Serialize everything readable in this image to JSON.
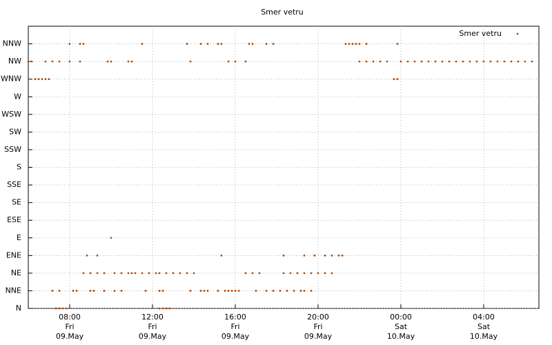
{
  "chart_data": {
    "type": "scatter",
    "title": "Smer vetru",
    "xlim": [
      "09.May 06:00",
      "10.May 06:40"
    ],
    "xticks": [
      {
        "value": "09.May 08:00",
        "label": [
          "08:00",
          "Fri",
          "09.May"
        ]
      },
      {
        "value": "09.May 12:00",
        "label": [
          "12:00",
          "Fri",
          "09.May"
        ]
      },
      {
        "value": "09.May 16:00",
        "label": [
          "16:00",
          "Fri",
          "09.May"
        ]
      },
      {
        "value": "09.May 20:00",
        "label": [
          "20:00",
          "Fri",
          "09.May"
        ]
      },
      {
        "value": "10.May 00:00",
        "label": [
          "00:00",
          "Sat",
          "10.May"
        ]
      },
      {
        "value": "10.May 04:00",
        "label": [
          "04:00",
          "Sat",
          "10.May"
        ]
      }
    ],
    "ylim": [
      0,
      16
    ],
    "yticks": [
      {
        "value": 0,
        "label": "N"
      },
      {
        "value": 1,
        "label": "NNE"
      },
      {
        "value": 2,
        "label": "NE"
      },
      {
        "value": 3,
        "label": "ENE"
      },
      {
        "value": 4,
        "label": "E"
      },
      {
        "value": 5,
        "label": "ESE"
      },
      {
        "value": 6,
        "label": "SE"
      },
      {
        "value": 7,
        "label": "SSE"
      },
      {
        "value": 8,
        "label": "S"
      },
      {
        "value": 9,
        "label": "SSW"
      },
      {
        "value": 10,
        "label": "SW"
      },
      {
        "value": 11,
        "label": "WSW"
      },
      {
        "value": 12,
        "label": "W"
      },
      {
        "value": 13,
        "label": "WNW"
      },
      {
        "value": 14,
        "label": "NW"
      },
      {
        "value": 15,
        "label": "NNW"
      }
    ],
    "grid": true,
    "legend": "top-right",
    "series": [
      {
        "name": "Smer vetru",
        "color": "#b04a00",
        "x": [
          "09.May 07:20",
          "09.May 07:30",
          "09.May 07:40",
          "09.May 07:50",
          "09.May 12:20",
          "09.May 12:30",
          "09.May 12:40",
          "09.May 12:50",
          "09.May 07:10",
          "09.May 07:30",
          "09.May 08:10",
          "09.May 08:20",
          "09.May 09:00",
          "09.May 09:10",
          "09.May 09:40",
          "09.May 10:10",
          "09.May 10:30",
          "09.May 11:40",
          "09.May 12:20",
          "09.May 12:30",
          "09.May 13:50",
          "09.May 14:20",
          "09.May 14:30",
          "09.May 14:40",
          "09.May 15:10",
          "09.May 15:30",
          "09.May 15:40",
          "09.May 15:50",
          "09.May 16:00",
          "09.May 16:10",
          "09.May 17:00",
          "09.May 17:30",
          "09.May 17:50",
          "09.May 18:10",
          "09.May 18:30",
          "09.May 18:50",
          "09.May 19:10",
          "09.May 19:20",
          "09.May 19:40",
          "09.May 08:40",
          "09.May 09:00",
          "09.May 09:20",
          "09.May 09:40",
          "09.May 10:10",
          "09.May 10:30",
          "09.May 10:50",
          "09.May 11:00",
          "09.May 11:10",
          "09.May 11:30",
          "09.May 11:50",
          "09.May 12:10",
          "09.May 12:20",
          "09.May 12:40",
          "09.May 13:00",
          "09.May 13:20",
          "09.May 13:40",
          "09.May 14:00",
          "09.May 16:30",
          "09.May 16:50",
          "09.May 17:10",
          "09.May 18:20",
          "09.May 18:40",
          "09.May 19:00",
          "09.May 19:20",
          "09.May 19:40",
          "09.May 20:00",
          "09.May 20:20",
          "09.May 20:40",
          "09.May 08:50",
          "09.May 09:20",
          "09.May 15:20",
          "09.May 18:20",
          "09.May 19:20",
          "09.May 19:50",
          "09.May 20:20",
          "09.May 20:40",
          "09.May 21:00",
          "09.May 21:10",
          "09.May 10:00",
          "09.May 06:20",
          "09.May 06:30",
          "09.May 06:40",
          "09.May 06:50",
          "09.May 07:00",
          "09.May 23:40",
          "09.May 23:50",
          "09.May 06:00",
          "09.May 06:10",
          "09.May 06:50",
          "09.May 07:10",
          "09.May 07:30",
          "09.May 08:00",
          "09.May 08:30",
          "09.May 09:50",
          "09.May 10:00",
          "09.May 10:50",
          "09.May 11:00",
          "09.May 13:50",
          "09.May 15:40",
          "09.May 16:00",
          "09.May 16:30",
          "09.May 22:00",
          "09.May 22:20",
          "09.May 22:40",
          "09.May 23:00",
          "09.May 23:20",
          "10.May 00:00",
          "10.May 00:20",
          "10.May 00:40",
          "10.May 01:00",
          "10.May 01:20",
          "10.May 01:40",
          "10.May 02:00",
          "10.May 02:20",
          "10.May 02:40",
          "10.May 03:00",
          "10.May 03:20",
          "10.May 03:40",
          "10.May 04:00",
          "10.May 04:20",
          "10.May 04:40",
          "10.May 05:00",
          "10.May 05:20",
          "10.May 05:40",
          "10.May 06:00",
          "10.May 06:20",
          "09.May 08:00",
          "09.May 08:30",
          "09.May 08:40",
          "09.May 11:30",
          "09.May 13:40",
          "09.May 14:20",
          "09.May 14:40",
          "09.May 15:10",
          "09.May 15:20",
          "09.May 16:40",
          "09.May 16:50",
          "09.May 17:30",
          "09.May 17:50",
          "09.May 21:20",
          "09.May 21:30",
          "09.May 21:40",
          "09.May 21:50",
          "09.May 22:00",
          "09.May 22:20",
          "09.May 23:50"
        ],
        "values": [
          0,
          0,
          0,
          0,
          0,
          0,
          0,
          0,
          1,
          1,
          1,
          1,
          1,
          1,
          1,
          1,
          1,
          1,
          1,
          1,
          1,
          1,
          1,
          1,
          1,
          1,
          1,
          1,
          1,
          1,
          1,
          1,
          1,
          1,
          1,
          1,
          1,
          1,
          1,
          2,
          2,
          2,
          2,
          2,
          2,
          2,
          2,
          2,
          2,
          2,
          2,
          2,
          2,
          2,
          2,
          2,
          2,
          2,
          2,
          2,
          2,
          2,
          2,
          2,
          2,
          2,
          2,
          2,
          3,
          3,
          3,
          3,
          3,
          3,
          3,
          3,
          3,
          3,
          4,
          13,
          13,
          13,
          13,
          13,
          13,
          13,
          14,
          14,
          14,
          14,
          14,
          14,
          14,
          14,
          14,
          14,
          14,
          14,
          14,
          14,
          14,
          14,
          14,
          14,
          14,
          14,
          14,
          14,
          14,
          14,
          14,
          14,
          14,
          14,
          14,
          14,
          14,
          14,
          14,
          14,
          14,
          14,
          14,
          14,
          14,
          14,
          15,
          15,
          15,
          15,
          15,
          15,
          15,
          15,
          15,
          15,
          15,
          15,
          15,
          15,
          15,
          15,
          15,
          15,
          15,
          15
        ]
      }
    ]
  }
}
